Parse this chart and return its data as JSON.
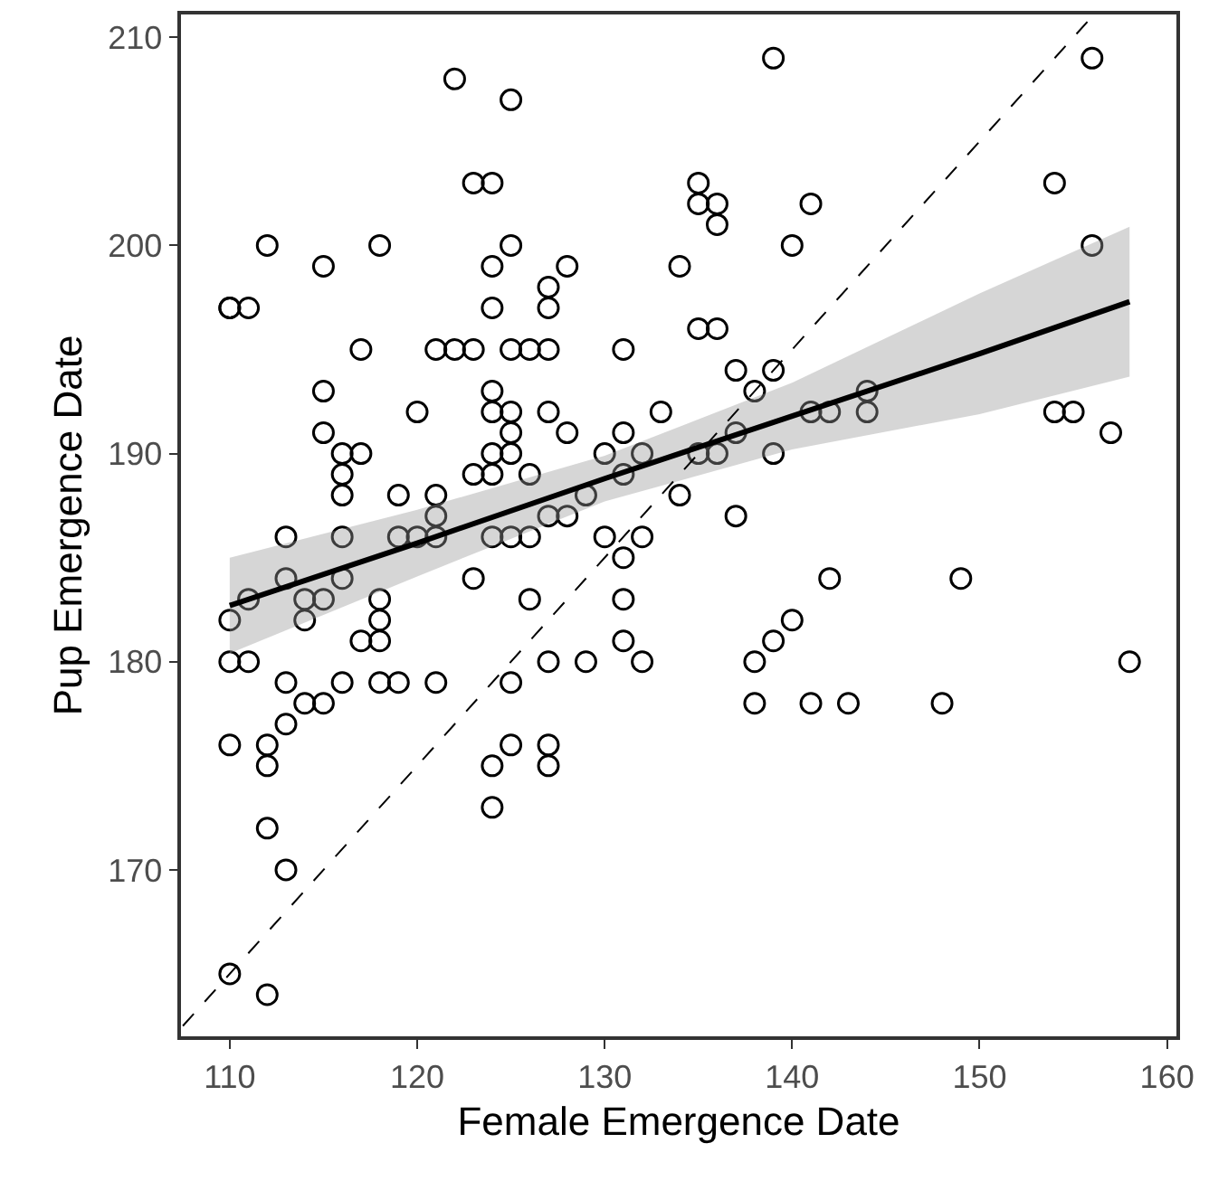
{
  "chart_data": {
    "type": "scatter",
    "xlabel": "Female Emergence Date",
    "ylabel": "Pup Emergence Date",
    "xlim": [
      107.4,
      160.5
    ],
    "xticks": [
      110,
      120,
      130,
      140,
      150,
      160
    ],
    "ylim": [
      162,
      211.1
    ],
    "yticks": [
      170,
      180,
      190,
      200,
      210
    ],
    "grid": false,
    "marker": "circle",
    "series": [
      {
        "color": "#000000",
        "x": [
          110,
          110,
          110,
          110,
          110,
          110,
          111,
          111,
          111,
          112,
          112,
          112,
          112,
          112,
          113,
          113,
          113,
          113,
          113,
          114,
          114,
          114,
          115,
          115,
          115,
          115,
          115,
          116,
          116,
          116,
          116,
          116,
          116,
          117,
          117,
          117,
          118,
          118,
          118,
          118,
          118,
          119,
          119,
          119,
          120,
          120,
          121,
          121,
          121,
          121,
          121,
          122,
          122,
          123,
          123,
          123,
          123,
          124,
          124,
          124,
          124,
          124,
          124,
          124,
          124,
          124,
          124,
          125,
          125,
          125,
          125,
          125,
          125,
          125,
          125,
          125,
          126,
          126,
          126,
          126,
          127,
          127,
          127,
          127,
          127,
          127,
          127,
          127,
          128,
          128,
          128,
          129,
          129,
          130,
          130,
          131,
          131,
          131,
          131,
          131,
          131,
          132,
          132,
          132,
          133,
          134,
          134,
          135,
          135,
          135,
          135,
          136,
          136,
          136,
          136,
          137,
          137,
          137,
          138,
          138,
          138,
          139,
          139,
          139,
          139,
          140,
          140,
          141,
          141,
          141,
          142,
          142,
          143,
          144,
          144,
          148,
          149,
          154,
          154,
          155,
          156,
          156,
          157,
          158
        ],
        "values": [
          197,
          182,
          180,
          176,
          165,
          197,
          197,
          183,
          180,
          200,
          176,
          175,
          172,
          164,
          186,
          184,
          179,
          177,
          170,
          183,
          182,
          178,
          199,
          193,
          191,
          183,
          178,
          190,
          189,
          188,
          186,
          184,
          179,
          195,
          190,
          181,
          200,
          183,
          182,
          181,
          179,
          188,
          186,
          179,
          192,
          186,
          195,
          188,
          187,
          186,
          179,
          208,
          195,
          203,
          195,
          189,
          184,
          203,
          199,
          197,
          193,
          192,
          190,
          189,
          186,
          175,
          173,
          207,
          200,
          195,
          192,
          191,
          190,
          186,
          179,
          176,
          195,
          189,
          186,
          183,
          198,
          197,
          195,
          192,
          187,
          180,
          176,
          175,
          199,
          191,
          187,
          188,
          180,
          190,
          186,
          195,
          191,
          189,
          185,
          183,
          181,
          190,
          186,
          180,
          192,
          199,
          188,
          203,
          202,
          196,
          190,
          202,
          201,
          196,
          190,
          194,
          191,
          187,
          193,
          180,
          178,
          209,
          194,
          190,
          181,
          200,
          182,
          202,
          192,
          178,
          192,
          184,
          178,
          193,
          192,
          178,
          184,
          203,
          192,
          192,
          209,
          200,
          191,
          180
        ]
      },
      {
        "type": "line",
        "color": "#000000",
        "marker": "none",
        "line_style": "solid",
        "x": [
          110,
          120,
          130,
          140,
          150,
          158
        ],
        "values": [
          182.7,
          185.7,
          188.8,
          191.8,
          194.8,
          197.3
        ],
        "lower": [
          180.4,
          184.1,
          187.7,
          190.2,
          191.9,
          193.7
        ],
        "upper": [
          185.0,
          187.3,
          189.9,
          193.4,
          197.7,
          200.9
        ]
      },
      {
        "type": "line",
        "color": "#000000",
        "marker": "none",
        "line_style": "dashed",
        "x": [
          107.5,
          156
        ],
        "values": [
          162.5,
          211
        ]
      }
    ]
  }
}
